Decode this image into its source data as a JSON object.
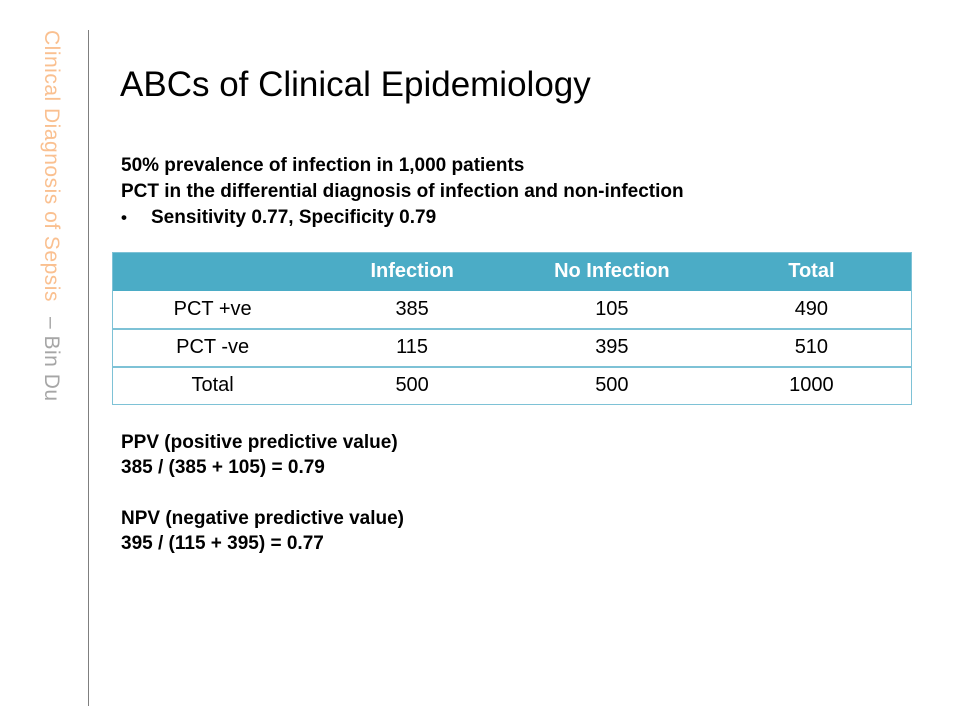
{
  "sidebar": {
    "deck_title": "Clinical Diagnosis of Sepsis",
    "byline": "– Bin Du"
  },
  "slide": {
    "title": "ABCs of Clinical Epidemiology",
    "intro": {
      "line1": "50% prevalence of infection in 1,000 patients",
      "line2": "PCT in the differential diagnosis of infection and non-infection",
      "bullet_glyph": "•",
      "bullet_text": "Sensitivity 0.77, Specificity 0.79"
    },
    "table": {
      "headers": [
        "",
        "Infection",
        "No Infection",
        "Total"
      ],
      "rows": [
        {
          "label": "PCT +ve",
          "values": [
            "385",
            "105",
            "490"
          ]
        },
        {
          "label": "PCT -ve",
          "values": [
            "115",
            "395",
            "510"
          ]
        },
        {
          "label": "Total",
          "values": [
            "500",
            "500",
            "1000"
          ]
        }
      ]
    },
    "ppv": {
      "heading": "PPV (positive predictive value)",
      "formula": "385 / (385 + 105) = 0.79"
    },
    "npv": {
      "heading": "NPV (negative predictive value)",
      "formula": "395 / (115 + 395) = 0.77"
    }
  },
  "colors": {
    "accent_teal": "#4BACC6",
    "table_line_teal": "#7EC2D6",
    "sidebar_orange": "#FAC090",
    "sidebar_gray": "#A6A6A6",
    "rule_gray": "#7F7F7F"
  }
}
